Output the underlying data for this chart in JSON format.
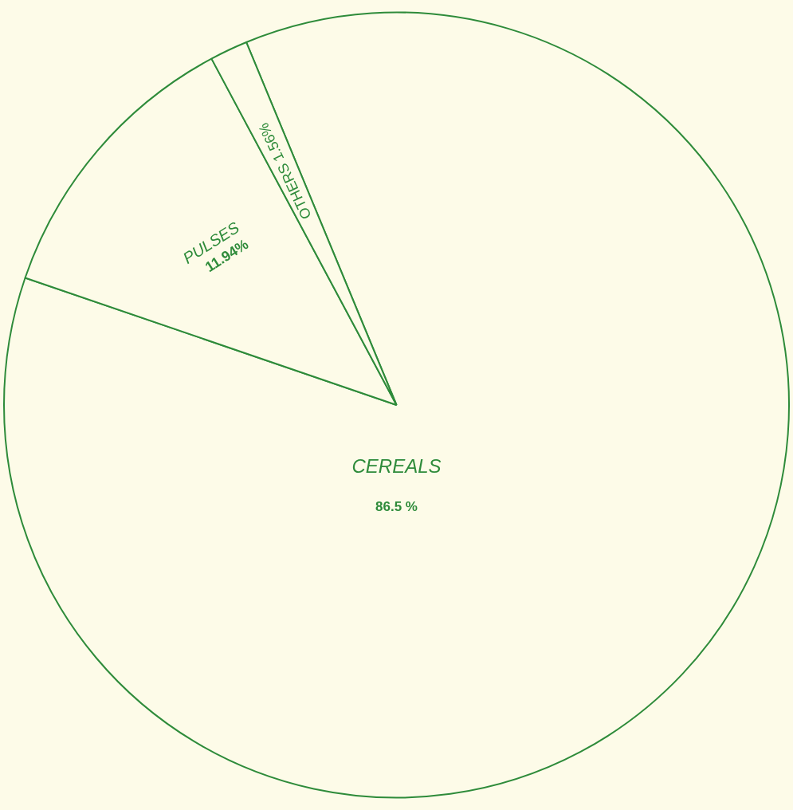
{
  "chart_data": {
    "type": "pie",
    "categories": [
      "CEREALS",
      "PULSES",
      "OTHERS"
    ],
    "values": [
      86.5,
      11.94,
      1.56
    ],
    "value_labels": [
      "86.5 %",
      "11.94%",
      "1.56%"
    ],
    "colors": [
      "#fdfbe8",
      "#fdfbe8",
      "#fdfbe8"
    ],
    "legend": false
  }
}
